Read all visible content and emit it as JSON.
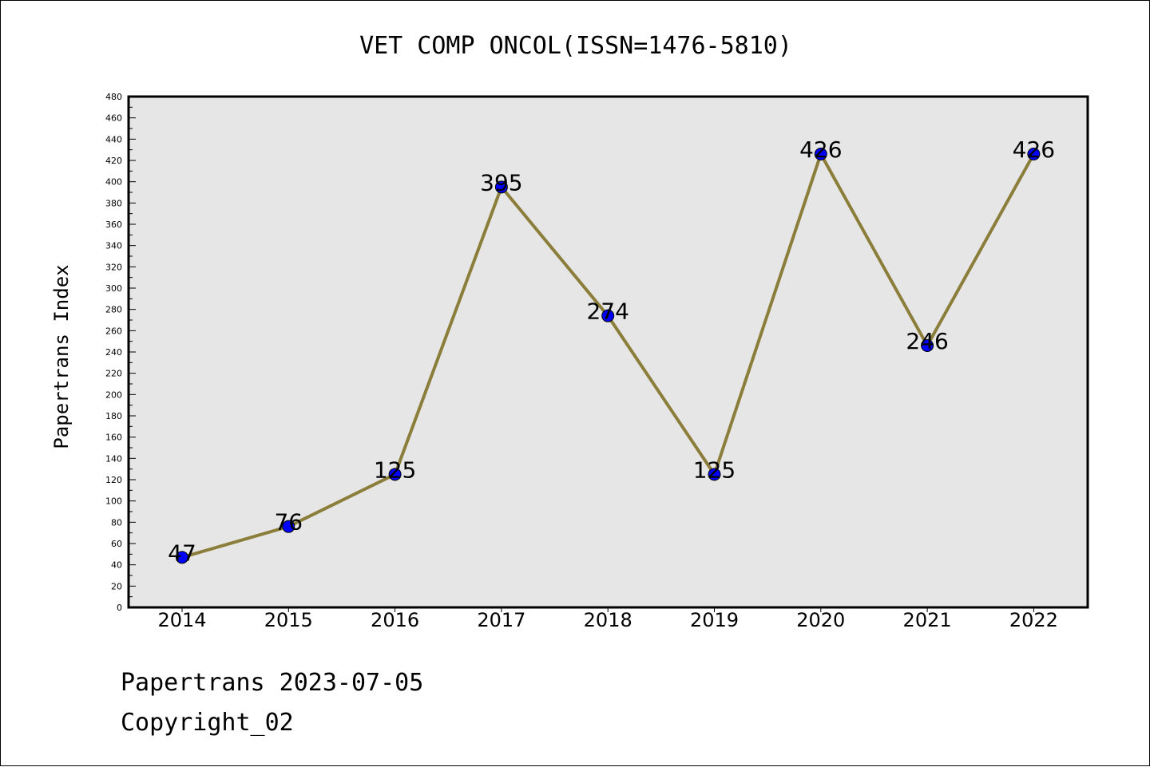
{
  "chart_data": {
    "type": "line",
    "title": "VET COMP ONCOL(ISSN=1476-5810)",
    "xlabel": "",
    "ylabel": "Papertrans Index",
    "x": [
      "2014",
      "2015",
      "2016",
      "2017",
      "2018",
      "2019",
      "2020",
      "2021",
      "2022"
    ],
    "series": [
      {
        "values": [
          47,
          76,
          125,
          395,
          274,
          125,
          426,
          246,
          426
        ]
      }
    ],
    "data_labels": [
      "47",
      "76",
      "125",
      "395",
      "274",
      "125",
      "426",
      "246",
      "426"
    ],
    "ylim": [
      0,
      480
    ],
    "yticks": [
      "0",
      "20",
      "40",
      "60",
      "80",
      "100",
      "120",
      "140",
      "160",
      "180",
      "200",
      "220",
      "240",
      "260",
      "280",
      "300",
      "320",
      "340",
      "360",
      "380",
      "400",
      "420",
      "440",
      "460",
      "480"
    ],
    "grid": false,
    "legend": "none",
    "colors": {
      "line": "#8b7d3a",
      "marker": "#0000ff",
      "plot_bg": "#e6e6e6"
    }
  },
  "footer": {
    "line1": "Papertrans 2023-07-05",
    "line2": "Copyright_02"
  }
}
